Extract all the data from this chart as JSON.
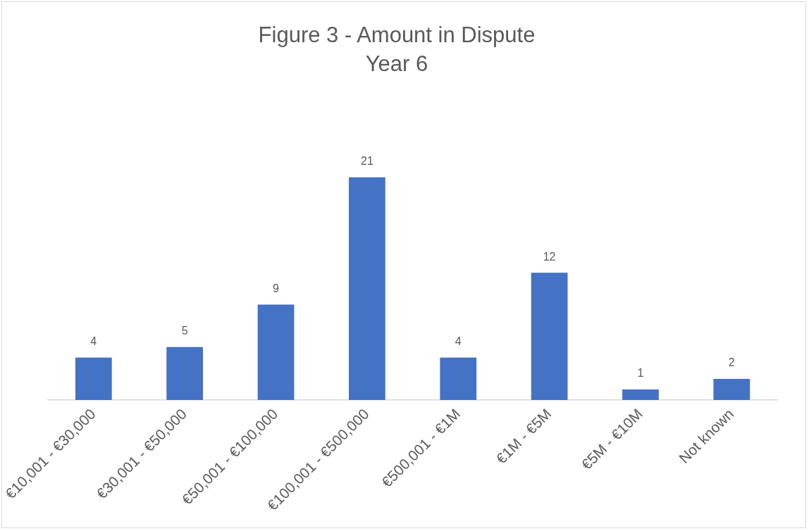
{
  "chart_data": {
    "type": "bar",
    "title": "Figure 3 - Amount in Dispute",
    "subtitle": "Year 6",
    "categories": [
      "€10,001 - €30,000",
      "€30,001 - €50,000",
      "€50,001 - €100,000",
      "€100,001 - €500,000",
      "€500,001 - €1M",
      "€1M - €5M",
      "€5M - €10M",
      "Not known"
    ],
    "values": [
      4,
      5,
      9,
      21,
      4,
      12,
      1,
      2
    ],
    "color": "#4472c4",
    "data_labels": true,
    "grid": false,
    "legend": false
  }
}
